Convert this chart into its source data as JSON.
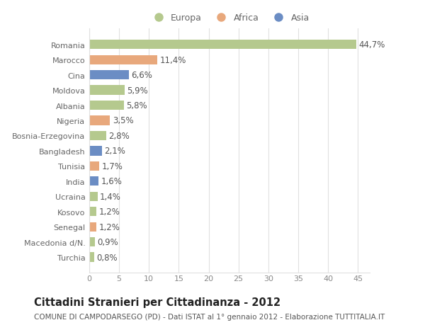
{
  "countries": [
    "Turchia",
    "Macedonia d/N.",
    "Senegal",
    "Kosovo",
    "Ucraina",
    "India",
    "Tunisia",
    "Bangladesh",
    "Bosnia-Erzegovina",
    "Nigeria",
    "Albania",
    "Moldova",
    "Cina",
    "Marocco",
    "Romania"
  ],
  "values": [
    0.8,
    0.9,
    1.2,
    1.2,
    1.4,
    1.6,
    1.7,
    2.1,
    2.8,
    3.5,
    5.8,
    5.9,
    6.6,
    11.4,
    44.7
  ],
  "labels": [
    "0,8%",
    "0,9%",
    "1,2%",
    "1,2%",
    "1,4%",
    "1,6%",
    "1,7%",
    "2,1%",
    "2,8%",
    "3,5%",
    "5,8%",
    "5,9%",
    "6,6%",
    "11,4%",
    "44,7%"
  ],
  "continents": [
    "Europa",
    "Europa",
    "Africa",
    "Europa",
    "Europa",
    "Asia",
    "Africa",
    "Asia",
    "Europa",
    "Africa",
    "Europa",
    "Europa",
    "Asia",
    "Africa",
    "Europa"
  ],
  "colors": {
    "Europa": "#b5c98e",
    "Africa": "#e8a87c",
    "Asia": "#6b8dc4"
  },
  "legend_labels": [
    "Europa",
    "Africa",
    "Asia"
  ],
  "legend_colors": [
    "#b5c98e",
    "#e8a87c",
    "#6b8dc4"
  ],
  "title": "Cittadini Stranieri per Cittadinanza - 2012",
  "subtitle": "COMUNE DI CAMPODARSEGO (PD) - Dati ISTAT al 1° gennaio 2012 - Elaborazione TUTTITALIA.IT",
  "xlim": [
    0,
    47
  ],
  "xticks": [
    0,
    5,
    10,
    15,
    20,
    25,
    30,
    35,
    40,
    45
  ],
  "background_color": "#ffffff",
  "plot_bg_color": "#ffffff",
  "grid_color": "#e0e0e0",
  "label_fontsize": 8.5,
  "tick_fontsize": 8,
  "title_fontsize": 10.5,
  "subtitle_fontsize": 7.5,
  "ylabel_color": "#666666",
  "xlabel_color": "#888888"
}
